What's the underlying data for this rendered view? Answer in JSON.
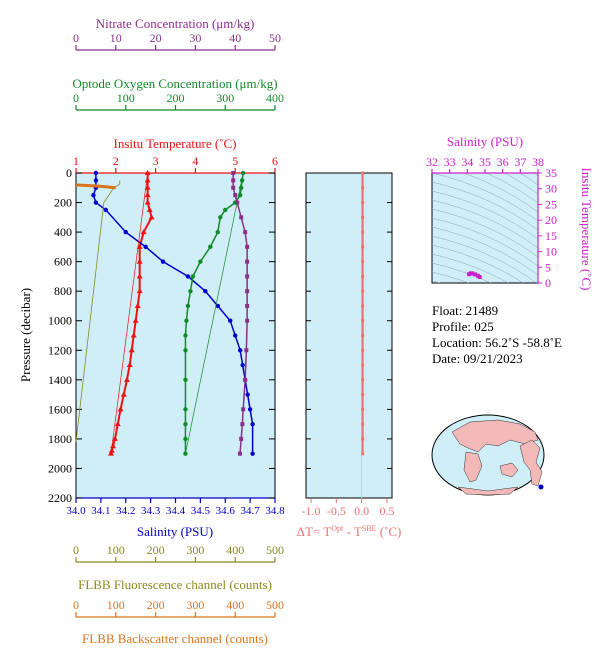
{
  "colors": {
    "panel_bg": "#cfeef8",
    "nitrate": "#8b2f8b",
    "oxygen": "#128a2a",
    "temperature": "#ee1111",
    "salinity": "#0000cc",
    "fluorescence": "#8a8a1e",
    "backscatter": "#d9731c",
    "delta_t": "#f07070",
    "ts_axis": "#cc22cc"
  },
  "axes": {
    "nitrate": {
      "label": "Nitrate Concentration (μm/kg)",
      "ticks": [
        "0",
        "10",
        "20",
        "30",
        "40",
        "50"
      ]
    },
    "oxygen": {
      "label": "Optode Oxygen Concentration (μm/kg)",
      "ticks": [
        "0",
        "100",
        "200",
        "300",
        "400"
      ]
    },
    "temperature": {
      "label": "Insitu Temperature (˚C)",
      "ticks": [
        "1",
        "2",
        "3",
        "4",
        "5",
        "6"
      ]
    },
    "pressure": {
      "label": "Pressure (decibar)",
      "ticks": [
        "0",
        "200",
        "400",
        "600",
        "800",
        "1000",
        "1200",
        "1400",
        "1600",
        "1800",
        "2000",
        "2200"
      ]
    },
    "salinity": {
      "label": "Salinity (PSU)",
      "ticks": [
        "34.0",
        "34.1",
        "34.2",
        "34.3",
        "34.4",
        "34.5",
        "34.6",
        "34.7",
        "34.8"
      ]
    },
    "fluorescence": {
      "label": "FLBB Fluorescence channel (counts)",
      "ticks": [
        "0",
        "100",
        "200",
        "300",
        "400",
        "500"
      ]
    },
    "backscatter": {
      "label": "FLBB Backscatter channel (counts)",
      "ticks": [
        "0",
        "100",
        "200",
        "300",
        "400",
        "500"
      ]
    },
    "delta_t": {
      "label_main": "ΔT= T",
      "label_sup1": "Opt",
      "label_mid": " - T",
      "label_sup2": "SBE",
      "label_end": " (˚C)",
      "ticks": [
        "-1.0",
        "-0.5",
        "0.0",
        "0.5"
      ]
    },
    "ts_salinity": {
      "label": "Salinity (PSU)",
      "ticks": [
        "32",
        "33",
        "34",
        "35",
        "36",
        "37",
        "38"
      ]
    },
    "ts_temperature": {
      "label": "Insitu Temperature (˚C)",
      "ticks": [
        "0",
        "5",
        "10",
        "15",
        "20",
        "25",
        "30",
        "35"
      ]
    }
  },
  "info": {
    "float": "Float:  21489",
    "profile": "Profile:  025",
    "location": "Location:  56.2˚S  -58.8˚E",
    "date": "Date:  09/21/2023"
  },
  "chart_data": [
    {
      "type": "line",
      "title": "",
      "ylabel": "Pressure (decibar)",
      "ylim": [
        0,
        2200
      ],
      "y_reversed": true,
      "series": [
        {
          "name": "Insitu Temperature (˚C)",
          "xlim": [
            1,
            6
          ],
          "x": [
            2.8,
            2.8,
            2.8,
            2.8,
            2.8,
            2.85,
            2.9,
            2.7,
            2.6,
            2.6,
            2.6,
            2.6,
            2.55,
            2.5,
            2.45,
            2.4,
            2.35,
            2.28,
            2.2,
            2.12,
            2.05,
            1.98,
            1.93,
            1.9,
            1.88
          ],
          "y": [
            0,
            50,
            100,
            150,
            200,
            250,
            300,
            400,
            500,
            600,
            700,
            800,
            900,
            1000,
            1100,
            1200,
            1300,
            1400,
            1500,
            1600,
            1700,
            1800,
            1850,
            1880,
            1900
          ]
        },
        {
          "name": "Salinity (PSU)",
          "xlim": [
            34.0,
            34.8
          ],
          "x": [
            34.08,
            34.08,
            34.08,
            34.07,
            34.08,
            34.12,
            34.2,
            34.28,
            34.35,
            34.45,
            34.52,
            34.57,
            34.62,
            34.64,
            34.66,
            34.67,
            34.68,
            34.69,
            34.7,
            34.71,
            34.71
          ],
          "y": [
            0,
            50,
            100,
            150,
            200,
            250,
            400,
            500,
            600,
            700,
            800,
            900,
            1000,
            1100,
            1200,
            1300,
            1400,
            1500,
            1600,
            1700,
            1900
          ]
        },
        {
          "name": "Optode Oxygen Concentration (μm/kg)",
          "xlim": [
            0,
            400
          ],
          "x": [
            336,
            334,
            332,
            330,
            320,
            300,
            290,
            285,
            270,
            250,
            235,
            230,
            225,
            222,
            220,
            220,
            220,
            220,
            220,
            220,
            220
          ],
          "y": [
            0,
            50,
            100,
            150,
            200,
            250,
            300,
            400,
            500,
            600,
            700,
            800,
            900,
            1000,
            1100,
            1200,
            1400,
            1600,
            1700,
            1800,
            1900
          ]
        },
        {
          "name": "Nitrate Concentration (μm/kg)",
          "xlim": [
            0,
            50
          ],
          "x": [
            39.5,
            39.5,
            39.5,
            40,
            40.5,
            41.5,
            42.5,
            43,
            43,
            43,
            43,
            43,
            43,
            42.8,
            42.5,
            42,
            41.8,
            41.5,
            41.2
          ],
          "y": [
            0,
            50,
            100,
            150,
            200,
            300,
            400,
            500,
            600,
            700,
            800,
            900,
            1000,
            1200,
            1400,
            1600,
            1700,
            1800,
            1900
          ]
        },
        {
          "name": "FLBB Fluorescence channel (counts)",
          "xlim": [
            0,
            500
          ],
          "x": [
            110,
            110,
            95,
            70,
            0
          ],
          "y": [
            50,
            75,
            100,
            200,
            1820
          ]
        },
        {
          "name": "FLBB Backscatter channel (counts)",
          "xlim": [
            0,
            500
          ],
          "x": [
            0,
            60,
            80,
            100
          ],
          "y": [
            80,
            90,
            95,
            100
          ]
        }
      ]
    },
    {
      "type": "line",
      "xlabel": "ΔT= T Opt - T SBE (˚C)",
      "xlim": [
        -1.1,
        0.6
      ],
      "ylim": [
        0,
        2200
      ],
      "series": [
        {
          "name": "ΔT",
          "x": [
            0.02,
            0.02,
            0.02,
            0.02,
            0.02,
            0.02,
            0.02,
            0.02,
            0.02,
            0.02,
            0.02,
            0.02,
            0.02,
            0.02,
            0.02,
            0.02,
            0.02,
            0.02,
            0.02,
            0.02
          ],
          "y": [
            0,
            100,
            200,
            300,
            400,
            500,
            600,
            700,
            800,
            900,
            1000,
            1100,
            1200,
            1300,
            1400,
            1500,
            1600,
            1700,
            1800,
            1900
          ]
        }
      ]
    },
    {
      "type": "scatter",
      "xlabel": "Salinity (PSU)",
      "ylabel": "Insitu Temperature (˚C)",
      "xlim": [
        32,
        38
      ],
      "ylim": [
        0,
        35
      ],
      "series": [
        {
          "name": "T-S",
          "x": [
            34.1,
            34.2,
            34.3,
            34.45,
            34.6,
            34.7
          ],
          "y": [
            2.8,
            3.1,
            3.0,
            2.7,
            2.3,
            1.9
          ]
        }
      ]
    }
  ]
}
